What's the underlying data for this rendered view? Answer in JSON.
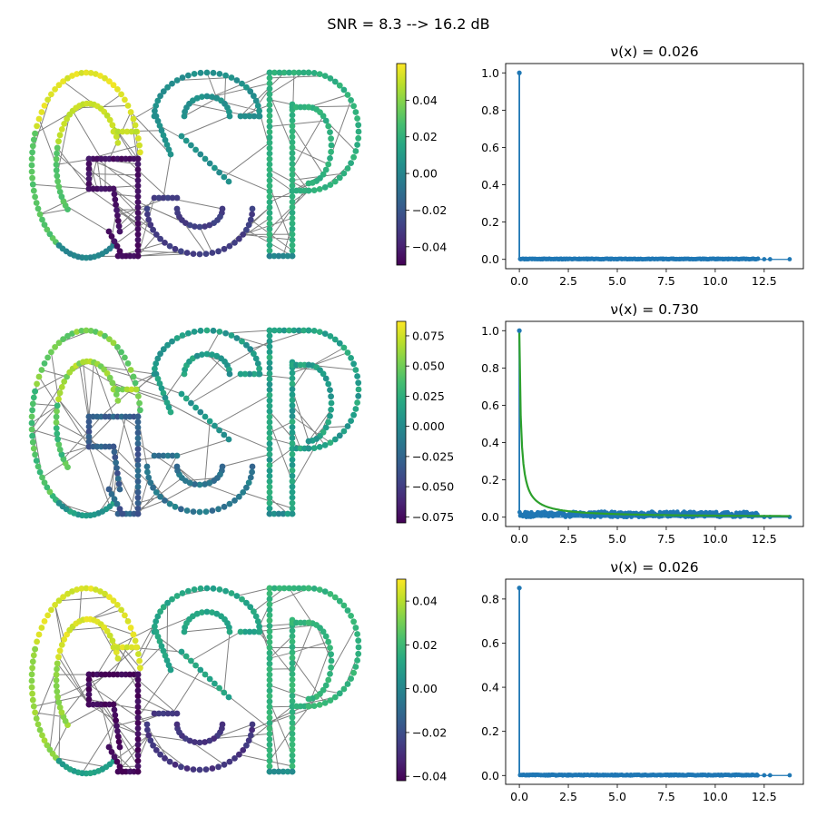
{
  "suptitle": "SNR = 8.3 --> 16.2 dB",
  "chart_data": [
    {
      "type": "graph-signal",
      "row": 0,
      "description_letters": [
        "G",
        "S",
        "P"
      ],
      "colorbar": {
        "min": -0.05,
        "max": 0.06,
        "ticks": [
          0.04,
          0.02,
          0.0,
          -0.02,
          -0.04
        ],
        "tick_labels": [
          "0.04",
          "0.02",
          "0.00",
          "−0.02",
          "−0.04"
        ]
      },
      "node_values": {
        "G_outer_top": 0.055,
        "G_outer_left": 0.03,
        "G_outer_bottom": 0.0,
        "G_inner_top": 0.05,
        "G_bar": -0.045,
        "S": 0.005,
        "S_bottom": -0.03,
        "P": 0.02,
        "P_stem_bottom": 0.0
      }
    },
    {
      "type": "scatter-stem",
      "row": 0,
      "title": "ν(x) = 0.026",
      "xlim": [
        -0.7,
        14.5
      ],
      "ylim": [
        -0.05,
        1.05
      ],
      "xticks": [
        0.0,
        2.5,
        5.0,
        7.5,
        10.0,
        12.5
      ],
      "xtick_labels": [
        "0.0",
        "2.5",
        "5.0",
        "7.5",
        "10.0",
        "12.5"
      ],
      "yticks": [
        0.0,
        0.2,
        0.4,
        0.6,
        0.8,
        1.0
      ],
      "ytick_labels": [
        "0.0",
        "0.2",
        "0.4",
        "0.6",
        "0.8",
        "1.0"
      ],
      "stem": {
        "x": 0.0,
        "y": 1.0
      },
      "points_range": {
        "x": [
          0,
          13.8
        ],
        "y_max": 0.004
      },
      "fit_curve": false
    },
    {
      "type": "graph-signal",
      "row": 1,
      "colorbar": {
        "min": -0.08,
        "max": 0.087,
        "ticks": [
          0.075,
          0.05,
          0.025,
          0.0,
          -0.025,
          -0.05,
          -0.075
        ],
        "tick_labels": [
          "0.075",
          "0.050",
          "0.025",
          "0.000",
          "−0.025",
          "−0.050",
          "−0.075"
        ]
      },
      "node_values": {
        "G_outer_top": 0.05,
        "G_outer_left": 0.04,
        "G_outer_bottom": 0.01,
        "G_inner_top": 0.06,
        "G_bar": -0.03,
        "S": 0.01,
        "S_bottom": -0.015,
        "P": 0.015,
        "P_stem_bottom": 0.005
      }
    },
    {
      "type": "scatter-stem",
      "row": 1,
      "title": "ν(x) = 0.730",
      "xlim": [
        -0.7,
        14.5
      ],
      "ylim": [
        -0.05,
        1.05
      ],
      "xticks": [
        0.0,
        2.5,
        5.0,
        7.5,
        10.0,
        12.5
      ],
      "xtick_labels": [
        "0.0",
        "2.5",
        "5.0",
        "7.5",
        "10.0",
        "12.5"
      ],
      "yticks": [
        0.0,
        0.2,
        0.4,
        0.6,
        0.8,
        1.0
      ],
      "ytick_labels": [
        "0.0",
        "0.2",
        "0.4",
        "0.6",
        "0.8",
        "1.0"
      ],
      "stem": {
        "x": 0.0,
        "y": 1.0
      },
      "points_range": {
        "x": [
          0,
          13.8
        ],
        "y_max": 0.03
      },
      "fit_curve": true,
      "fit_color": "#2ca02c"
    },
    {
      "type": "graph-signal",
      "row": 2,
      "colorbar": {
        "min": -0.042,
        "max": 0.05,
        "ticks": [
          0.04,
          0.02,
          0.0,
          -0.02,
          -0.04
        ],
        "tick_labels": [
          "0.04",
          "0.02",
          "0.00",
          "−0.02",
          "−0.04"
        ]
      },
      "node_values": {
        "G_outer_top": 0.045,
        "G_outer_left": 0.035,
        "G_outer_bottom": 0.01,
        "G_inner_top": 0.045,
        "G_bar": -0.04,
        "S": 0.012,
        "S_bottom": -0.028,
        "P": 0.018,
        "P_stem_bottom": 0.004
      }
    },
    {
      "type": "scatter-stem",
      "row": 2,
      "title": "ν(x) = 0.026",
      "xlim": [
        -0.7,
        14.5
      ],
      "ylim": [
        -0.04,
        0.89
      ],
      "xticks": [
        0.0,
        2.5,
        5.0,
        7.5,
        10.0,
        12.5
      ],
      "xtick_labels": [
        "0.0",
        "2.5",
        "5.0",
        "7.5",
        "10.0",
        "12.5"
      ],
      "yticks": [
        0.0,
        0.2,
        0.4,
        0.6,
        0.8
      ],
      "ytick_labels": [
        "0.0",
        "0.2",
        "0.4",
        "0.6",
        "0.8"
      ],
      "stem": {
        "x": 0.0,
        "y": 0.85
      },
      "points_range": {
        "x": [
          0,
          13.8
        ],
        "y_max": 0.004
      },
      "fit_curve": false
    }
  ],
  "colors": {
    "point": "#1f77b4",
    "edge": "#808080",
    "fit": "#2ca02c"
  }
}
